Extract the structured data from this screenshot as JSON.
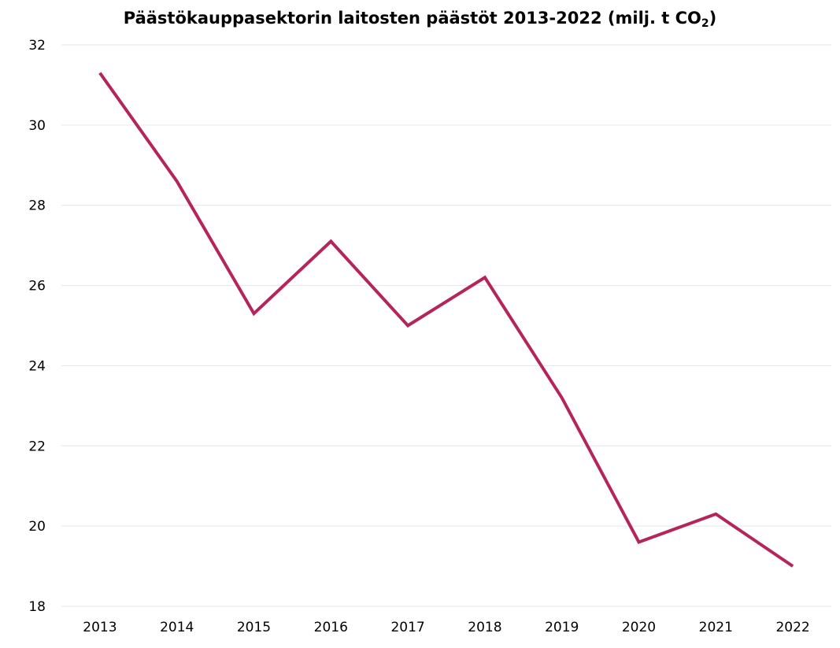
{
  "chart_data": {
    "type": "line",
    "title": {
      "main": "Päästökauppasektorin laitosten päästöt 2013-2022 (milj. t CO",
      "subscript": "2",
      "suffix": ")"
    },
    "xlabel": "",
    "ylabel": "",
    "categories": [
      "2013",
      "2014",
      "2015",
      "2016",
      "2017",
      "2018",
      "2019",
      "2020",
      "2021",
      "2022"
    ],
    "series": [
      {
        "values": [
          31.3,
          28.6,
          25.3,
          27.1,
          25.0,
          26.2,
          23.2,
          19.6,
          20.3,
          19.0
        ],
        "color": "#b5245a"
      }
    ],
    "ylim": [
      18,
      32
    ],
    "yticks": [
      "18",
      "20",
      "22",
      "24",
      "26",
      "28",
      "30",
      "32"
    ],
    "grid": true,
    "grid_color": "#e6e6e6",
    "legend": "none"
  }
}
